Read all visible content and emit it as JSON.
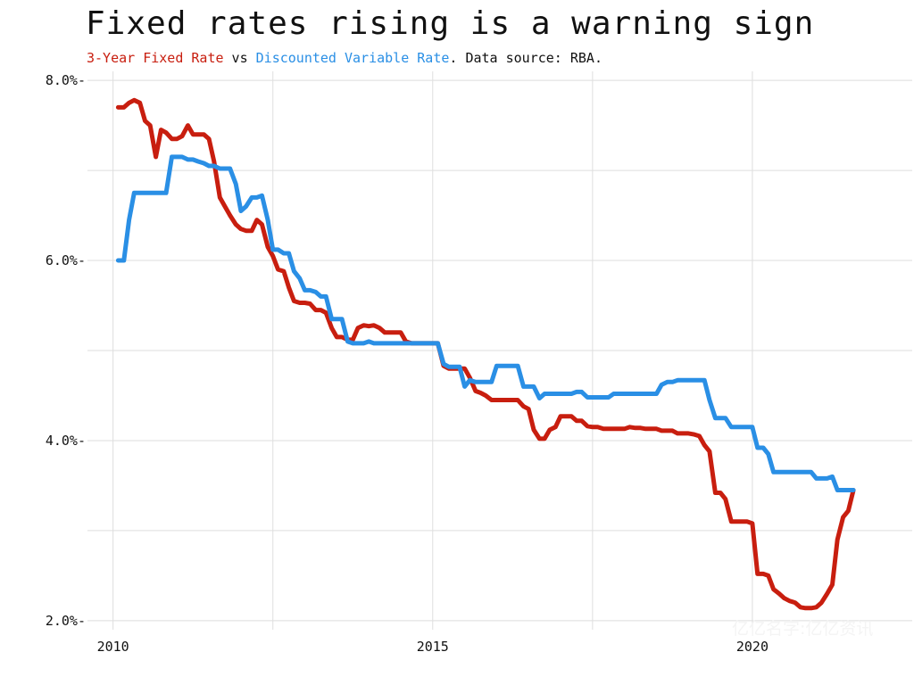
{
  "chart_data": {
    "type": "line",
    "title": "Fixed rates rising is a warning sign",
    "subtitle": {
      "series1": "3-Year Fixed Rate",
      "vs": " vs ",
      "series2": "Discounted Variable Rate",
      "tail": ". Data source: RBA."
    },
    "xlim": [
      2009.6,
      2022.5
    ],
    "ylim": [
      1.9,
      8.1
    ],
    "x_ticks": [
      2010,
      2015,
      2020
    ],
    "x_tick_labels": [
      "2010",
      "2015",
      "2020"
    ],
    "y_ticks": [
      2,
      4,
      6,
      8
    ],
    "y_tick_labels": [
      "2.0%-",
      "4.0%-",
      "6.0%-",
      "8.0%-"
    ],
    "grid_x": [
      2010,
      2012.5,
      2015,
      2017.5,
      2020
    ],
    "grid_y": [
      2,
      3,
      4,
      5,
      6,
      7,
      8
    ],
    "grid": true,
    "series": [
      {
        "name": "3-Year Fixed Rate",
        "color": "#c81e0f",
        "points": [
          [
            2010.08,
            7.7
          ],
          [
            2010.17,
            7.7
          ],
          [
            2010.25,
            7.75
          ],
          [
            2010.33,
            7.78
          ],
          [
            2010.42,
            7.75
          ],
          [
            2010.5,
            7.55
          ],
          [
            2010.58,
            7.5
          ],
          [
            2010.67,
            7.15
          ],
          [
            2010.75,
            7.45
          ],
          [
            2010.83,
            7.42
          ],
          [
            2010.92,
            7.35
          ],
          [
            2011.0,
            7.35
          ],
          [
            2011.08,
            7.38
          ],
          [
            2011.17,
            7.5
          ],
          [
            2011.25,
            7.4
          ],
          [
            2011.33,
            7.4
          ],
          [
            2011.42,
            7.4
          ],
          [
            2011.5,
            7.35
          ],
          [
            2011.58,
            7.1
          ],
          [
            2011.67,
            6.7
          ],
          [
            2011.75,
            6.6
          ],
          [
            2011.83,
            6.5
          ],
          [
            2011.92,
            6.4
          ],
          [
            2012.0,
            6.35
          ],
          [
            2012.08,
            6.33
          ],
          [
            2012.17,
            6.33
          ],
          [
            2012.25,
            6.45
          ],
          [
            2012.33,
            6.4
          ],
          [
            2012.42,
            6.15
          ],
          [
            2012.5,
            6.05
          ],
          [
            2012.58,
            5.9
          ],
          [
            2012.67,
            5.88
          ],
          [
            2012.75,
            5.7
          ],
          [
            2012.83,
            5.55
          ],
          [
            2012.92,
            5.53
          ],
          [
            2013.0,
            5.53
          ],
          [
            2013.08,
            5.52
          ],
          [
            2013.17,
            5.45
          ],
          [
            2013.25,
            5.45
          ],
          [
            2013.33,
            5.42
          ],
          [
            2013.42,
            5.25
          ],
          [
            2013.5,
            5.15
          ],
          [
            2013.58,
            5.15
          ],
          [
            2013.67,
            5.12
          ],
          [
            2013.75,
            5.12
          ],
          [
            2013.83,
            5.25
          ],
          [
            2013.92,
            5.28
          ],
          [
            2014.0,
            5.27
          ],
          [
            2014.08,
            5.28
          ],
          [
            2014.17,
            5.25
          ],
          [
            2014.25,
            5.2
          ],
          [
            2014.33,
            5.2
          ],
          [
            2014.42,
            5.2
          ],
          [
            2014.5,
            5.2
          ],
          [
            2014.58,
            5.1
          ],
          [
            2014.67,
            5.08
          ],
          [
            2014.75,
            5.08
          ],
          [
            2014.83,
            5.08
          ],
          [
            2014.92,
            5.08
          ],
          [
            2015.0,
            5.08
          ],
          [
            2015.08,
            5.08
          ],
          [
            2015.17,
            4.83
          ],
          [
            2015.25,
            4.8
          ],
          [
            2015.33,
            4.8
          ],
          [
            2015.42,
            4.8
          ],
          [
            2015.5,
            4.8
          ],
          [
            2015.58,
            4.7
          ],
          [
            2015.67,
            4.55
          ],
          [
            2015.75,
            4.53
          ],
          [
            2015.83,
            4.5
          ],
          [
            2015.92,
            4.45
          ],
          [
            2016.0,
            4.45
          ],
          [
            2016.08,
            4.45
          ],
          [
            2016.17,
            4.45
          ],
          [
            2016.25,
            4.45
          ],
          [
            2016.33,
            4.45
          ],
          [
            2016.42,
            4.38
          ],
          [
            2016.5,
            4.35
          ],
          [
            2016.58,
            4.12
          ],
          [
            2016.67,
            4.02
          ],
          [
            2016.75,
            4.02
          ],
          [
            2016.83,
            4.12
          ],
          [
            2016.92,
            4.15
          ],
          [
            2017.0,
            4.27
          ],
          [
            2017.08,
            4.27
          ],
          [
            2017.17,
            4.27
          ],
          [
            2017.25,
            4.22
          ],
          [
            2017.33,
            4.22
          ],
          [
            2017.42,
            4.16
          ],
          [
            2017.5,
            4.15
          ],
          [
            2017.58,
            4.15
          ],
          [
            2017.67,
            4.13
          ],
          [
            2017.75,
            4.13
          ],
          [
            2017.83,
            4.13
          ],
          [
            2017.92,
            4.13
          ],
          [
            2018.0,
            4.13
          ],
          [
            2018.08,
            4.15
          ],
          [
            2018.17,
            4.14
          ],
          [
            2018.25,
            4.14
          ],
          [
            2018.33,
            4.13
          ],
          [
            2018.42,
            4.13
          ],
          [
            2018.5,
            4.13
          ],
          [
            2018.58,
            4.11
          ],
          [
            2018.67,
            4.11
          ],
          [
            2018.75,
            4.11
          ],
          [
            2018.83,
            4.08
          ],
          [
            2018.92,
            4.08
          ],
          [
            2019.0,
            4.08
          ],
          [
            2019.08,
            4.07
          ],
          [
            2019.17,
            4.05
          ],
          [
            2019.25,
            3.95
          ],
          [
            2019.33,
            3.88
          ],
          [
            2019.42,
            3.42
          ],
          [
            2019.5,
            3.42
          ],
          [
            2019.58,
            3.35
          ],
          [
            2019.67,
            3.1
          ],
          [
            2019.75,
            3.1
          ],
          [
            2019.83,
            3.1
          ],
          [
            2019.92,
            3.1
          ],
          [
            2020.0,
            3.08
          ],
          [
            2020.08,
            2.52
          ],
          [
            2020.17,
            2.52
          ],
          [
            2020.25,
            2.5
          ],
          [
            2020.33,
            2.35
          ],
          [
            2020.42,
            2.3
          ],
          [
            2020.5,
            2.25
          ],
          [
            2020.58,
            2.22
          ],
          [
            2020.67,
            2.2
          ],
          [
            2020.75,
            2.15
          ],
          [
            2020.83,
            2.14
          ],
          [
            2020.92,
            2.14
          ],
          [
            2021.0,
            2.15
          ],
          [
            2021.08,
            2.2
          ],
          [
            2021.17,
            2.3
          ],
          [
            2021.25,
            2.4
          ],
          [
            2021.33,
            2.9
          ],
          [
            2021.42,
            3.15
          ],
          [
            2021.5,
            3.22
          ],
          [
            2021.58,
            3.45
          ]
        ]
      },
      {
        "name": "Discounted Variable Rate",
        "color": "#2a8fe5",
        "points": [
          [
            2010.08,
            6.0
          ],
          [
            2010.17,
            6.0
          ],
          [
            2010.25,
            6.45
          ],
          [
            2010.33,
            6.75
          ],
          [
            2010.42,
            6.75
          ],
          [
            2010.5,
            6.75
          ],
          [
            2010.58,
            6.75
          ],
          [
            2010.67,
            6.75
          ],
          [
            2010.75,
            6.75
          ],
          [
            2010.83,
            6.75
          ],
          [
            2010.92,
            7.15
          ],
          [
            2011.0,
            7.15
          ],
          [
            2011.08,
            7.15
          ],
          [
            2011.17,
            7.12
          ],
          [
            2011.25,
            7.12
          ],
          [
            2011.33,
            7.1
          ],
          [
            2011.42,
            7.08
          ],
          [
            2011.5,
            7.05
          ],
          [
            2011.58,
            7.05
          ],
          [
            2011.67,
            7.02
          ],
          [
            2011.75,
            7.02
          ],
          [
            2011.83,
            7.02
          ],
          [
            2011.92,
            6.85
          ],
          [
            2012.0,
            6.55
          ],
          [
            2012.08,
            6.6
          ],
          [
            2012.17,
            6.7
          ],
          [
            2012.25,
            6.7
          ],
          [
            2012.33,
            6.72
          ],
          [
            2012.42,
            6.45
          ],
          [
            2012.5,
            6.12
          ],
          [
            2012.58,
            6.12
          ],
          [
            2012.67,
            6.08
          ],
          [
            2012.75,
            6.08
          ],
          [
            2012.83,
            5.88
          ],
          [
            2012.92,
            5.8
          ],
          [
            2013.0,
            5.67
          ],
          [
            2013.08,
            5.67
          ],
          [
            2013.17,
            5.65
          ],
          [
            2013.25,
            5.6
          ],
          [
            2013.33,
            5.6
          ],
          [
            2013.42,
            5.35
          ],
          [
            2013.5,
            5.35
          ],
          [
            2013.58,
            5.35
          ],
          [
            2013.67,
            5.1
          ],
          [
            2013.75,
            5.08
          ],
          [
            2013.83,
            5.08
          ],
          [
            2013.92,
            5.08
          ],
          [
            2014.0,
            5.1
          ],
          [
            2014.08,
            5.08
          ],
          [
            2014.17,
            5.08
          ],
          [
            2014.25,
            5.08
          ],
          [
            2014.33,
            5.08
          ],
          [
            2014.42,
            5.08
          ],
          [
            2014.5,
            5.08
          ],
          [
            2014.58,
            5.08
          ],
          [
            2014.67,
            5.08
          ],
          [
            2014.75,
            5.08
          ],
          [
            2014.83,
            5.08
          ],
          [
            2014.92,
            5.08
          ],
          [
            2015.0,
            5.08
          ],
          [
            2015.08,
            5.08
          ],
          [
            2015.17,
            4.85
          ],
          [
            2015.25,
            4.82
          ],
          [
            2015.33,
            4.82
          ],
          [
            2015.42,
            4.82
          ],
          [
            2015.5,
            4.6
          ],
          [
            2015.58,
            4.67
          ],
          [
            2015.67,
            4.65
          ],
          [
            2015.75,
            4.65
          ],
          [
            2015.83,
            4.65
          ],
          [
            2015.92,
            4.65
          ],
          [
            2016.0,
            4.83
          ],
          [
            2016.08,
            4.83
          ],
          [
            2016.17,
            4.83
          ],
          [
            2016.25,
            4.83
          ],
          [
            2016.33,
            4.83
          ],
          [
            2016.42,
            4.6
          ],
          [
            2016.5,
            4.6
          ],
          [
            2016.58,
            4.6
          ],
          [
            2016.67,
            4.47
          ],
          [
            2016.75,
            4.52
          ],
          [
            2016.83,
            4.52
          ],
          [
            2016.92,
            4.52
          ],
          [
            2017.0,
            4.52
          ],
          [
            2017.08,
            4.52
          ],
          [
            2017.17,
            4.52
          ],
          [
            2017.25,
            4.54
          ],
          [
            2017.33,
            4.54
          ],
          [
            2017.42,
            4.48
          ],
          [
            2017.5,
            4.48
          ],
          [
            2017.58,
            4.48
          ],
          [
            2017.67,
            4.48
          ],
          [
            2017.75,
            4.48
          ],
          [
            2017.83,
            4.52
          ],
          [
            2017.92,
            4.52
          ],
          [
            2018.0,
            4.52
          ],
          [
            2018.08,
            4.52
          ],
          [
            2018.17,
            4.52
          ],
          [
            2018.25,
            4.52
          ],
          [
            2018.33,
            4.52
          ],
          [
            2018.42,
            4.52
          ],
          [
            2018.5,
            4.52
          ],
          [
            2018.58,
            4.62
          ],
          [
            2018.67,
            4.65
          ],
          [
            2018.75,
            4.65
          ],
          [
            2018.83,
            4.67
          ],
          [
            2018.92,
            4.67
          ],
          [
            2019.0,
            4.67
          ],
          [
            2019.08,
            4.67
          ],
          [
            2019.17,
            4.67
          ],
          [
            2019.25,
            4.67
          ],
          [
            2019.33,
            4.45
          ],
          [
            2019.42,
            4.25
          ],
          [
            2019.5,
            4.25
          ],
          [
            2019.58,
            4.25
          ],
          [
            2019.67,
            4.15
          ],
          [
            2019.75,
            4.15
          ],
          [
            2019.83,
            4.15
          ],
          [
            2019.92,
            4.15
          ],
          [
            2020.0,
            4.15
          ],
          [
            2020.08,
            3.92
          ],
          [
            2020.17,
            3.92
          ],
          [
            2020.25,
            3.85
          ],
          [
            2020.33,
            3.65
          ],
          [
            2020.42,
            3.65
          ],
          [
            2020.5,
            3.65
          ],
          [
            2020.58,
            3.65
          ],
          [
            2020.67,
            3.65
          ],
          [
            2020.75,
            3.65
          ],
          [
            2020.83,
            3.65
          ],
          [
            2020.92,
            3.65
          ],
          [
            2021.0,
            3.58
          ],
          [
            2021.08,
            3.58
          ],
          [
            2021.17,
            3.58
          ],
          [
            2021.25,
            3.6
          ],
          [
            2021.33,
            3.45
          ],
          [
            2021.42,
            3.45
          ],
          [
            2021.5,
            3.45
          ],
          [
            2021.58,
            3.45
          ]
        ]
      }
    ]
  },
  "watermark": "亿亿名字:亿亿资讯"
}
